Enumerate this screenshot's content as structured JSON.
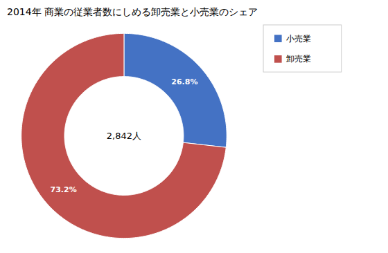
{
  "chart_data": {
    "type": "donut",
    "title": "2014年 商業の従業者数にしめる卸売業と小売業のシェア",
    "categories": [
      "小売業",
      "卸売業"
    ],
    "values": [
      26.8,
      73.2
    ],
    "value_labels": [
      "26.8%",
      "73.2%"
    ],
    "colors": [
      "#4472C4",
      "#C0504D"
    ],
    "data_labels": true,
    "legend": "upper right",
    "annotations": [
      "2,842人"
    ]
  }
}
